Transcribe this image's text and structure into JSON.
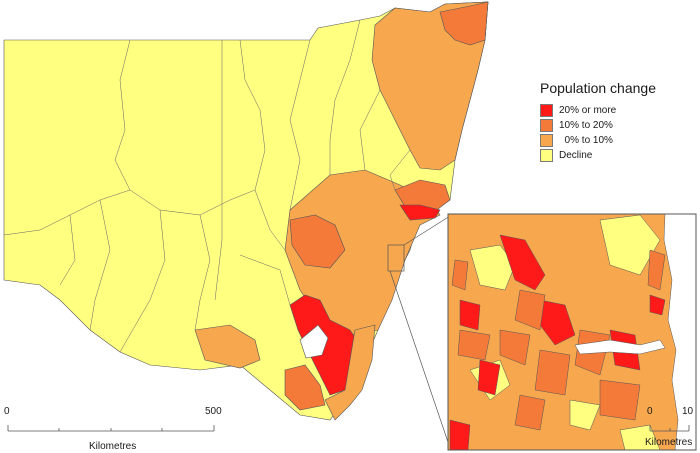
{
  "map": {
    "legend": {
      "title": "Population change",
      "items": [
        {
          "label": "20% or more",
          "color": "#ff1a1a"
        },
        {
          "label": "10% to 20%",
          "color": "#f47a3a"
        },
        {
          "label": "  0% to 10%",
          "color": "#f7a84e"
        },
        {
          "label": "Decline",
          "color": "#ffff80"
        }
      ]
    },
    "main_scale": {
      "start": "0",
      "end": "500",
      "unit": "Kilometres"
    },
    "inset_scale": {
      "start": "0",
      "end": "10",
      "unit": "Kilometres"
    },
    "colors": {
      "background": "#ffffff",
      "boundary": "#555555",
      "water": "#ffffff"
    }
  }
}
